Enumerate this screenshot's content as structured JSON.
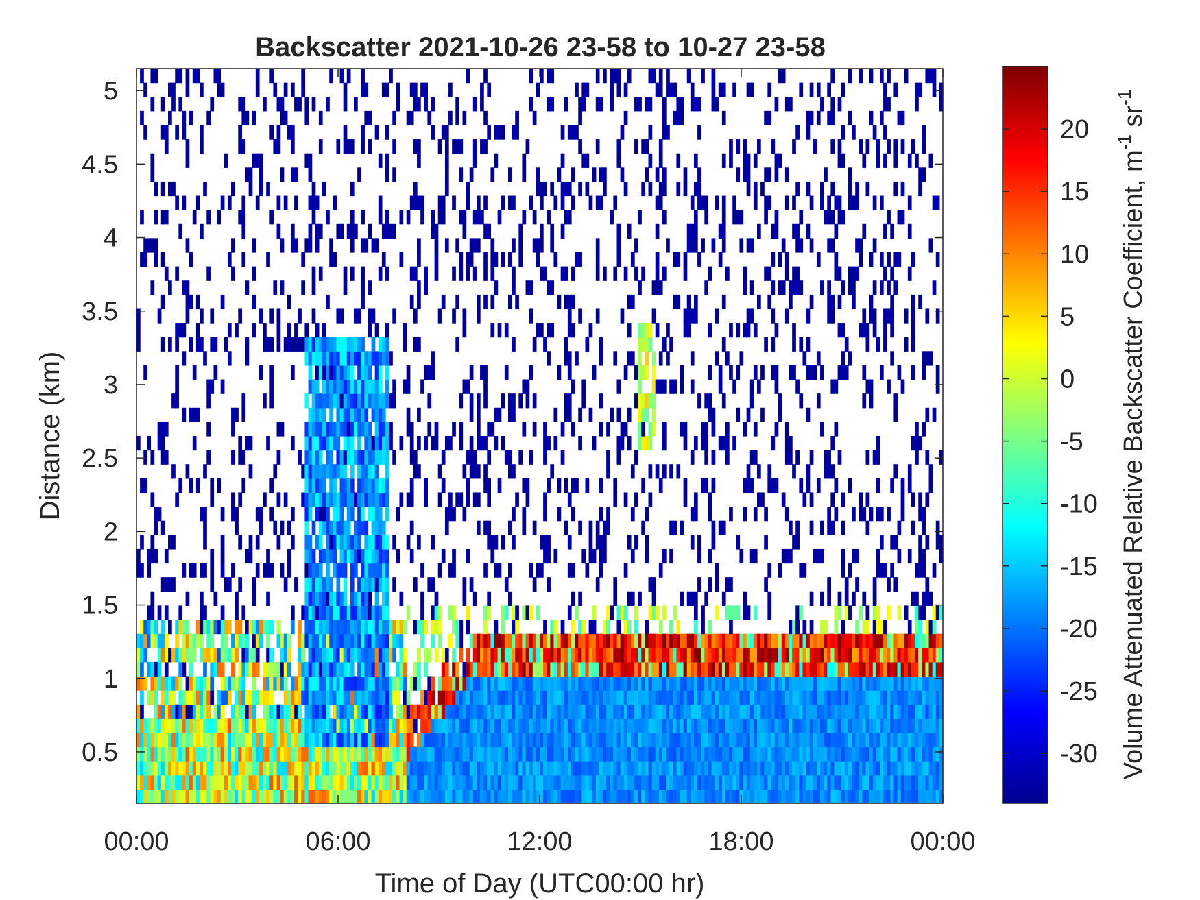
{
  "chart_data": {
    "type": "heatmap",
    "title": "Backscatter 2021-10-26 23-58 to 10-27 23-58",
    "xlabel": "Time of Day (UTC00:00 hr)",
    "ylabel": "Distance (km)",
    "colorbar_label": "Volume Attenuated Relative Backscatter Coefficient, m",
    "colorbar_label_sup1": "-1",
    "colorbar_label_mid": " sr",
    "colorbar_label_sup2": "-1",
    "x_ticks": [
      "00:00",
      "06:00",
      "12:00",
      "18:00",
      "00:00"
    ],
    "x_range_hours": [
      0,
      24
    ],
    "y_ticks": [
      "0.5",
      "1",
      "1.5",
      "2",
      "2.5",
      "3",
      "3.5",
      "4",
      "4.5",
      "5"
    ],
    "y_range_km": [
      0.15,
      5.15
    ],
    "colorbar_ticks": [
      "-30",
      "-25",
      "-20",
      "-15",
      "-10",
      "-5",
      "0",
      "5",
      "10",
      "15",
      "20"
    ],
    "color_range": [
      -34,
      25
    ],
    "colormap": "jet",
    "grid": false,
    "regions": [
      {
        "description": "dense noisy low-level layer",
        "time_h": [
          0,
          8
        ],
        "height_km": [
          0.15,
          1.4
        ],
        "value_range": [
          -15,
          15
        ]
      },
      {
        "description": "tall plume column",
        "time_h": [
          5,
          7.5
        ],
        "height_km": [
          0.5,
          3.4
        ],
        "value_range": [
          -25,
          -10
        ]
      },
      {
        "description": "boundary layer after morning",
        "time_h": [
          8,
          24
        ],
        "height_km": [
          0.15,
          1.0
        ],
        "value_range": [
          -22,
          -15
        ]
      },
      {
        "description": "cloud layer",
        "time_h": [
          10,
          24
        ],
        "height_km": [
          1.0,
          1.35
        ],
        "value_range": [
          10,
          25
        ]
      },
      {
        "description": "thin cloud streak",
        "time_h": [
          14.9,
          15.4
        ],
        "height_km": [
          2.6,
          3.4
        ],
        "value_range": [
          -5,
          5
        ]
      },
      {
        "description": "sparse noise above layers",
        "time_h": [
          0,
          24
        ],
        "height_km": [
          1.4,
          5.15
        ],
        "value_range": [
          -34,
          -30
        ]
      }
    ]
  }
}
